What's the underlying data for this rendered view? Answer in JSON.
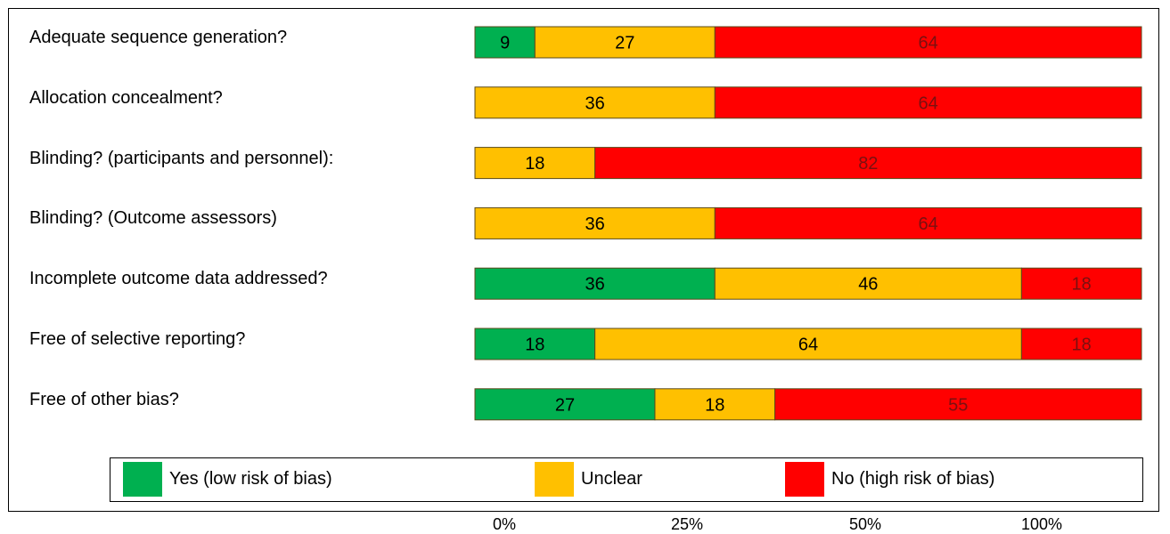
{
  "chart_data": {
    "type": "bar",
    "stacked": true,
    "orientation": "horizontal",
    "categories": [
      "Adequate sequence generation?",
      "Allocation concealment?",
      "Blinding? (participants and personnel):",
      "Blinding? (Outcome assessors)",
      "Incomplete outcome data addressed?",
      "Free of selective reporting?",
      "Free of other bias?"
    ],
    "series": [
      {
        "name": "Yes (low risk of bias)",
        "color": "#00b050",
        "values": [
          9,
          0,
          0,
          0,
          36,
          18,
          27
        ]
      },
      {
        "name": "Unclear",
        "color": "#ffc000",
        "values": [
          27,
          36,
          18,
          36,
          46,
          64,
          18
        ]
      },
      {
        "name": "No (high risk of bias)",
        "color": "#ff0000",
        "values": [
          64,
          64,
          82,
          64,
          18,
          18,
          55
        ]
      }
    ],
    "x_ticks": [
      "0%",
      "25%",
      "50%",
      "100%"
    ],
    "legend_position": "bottom"
  }
}
